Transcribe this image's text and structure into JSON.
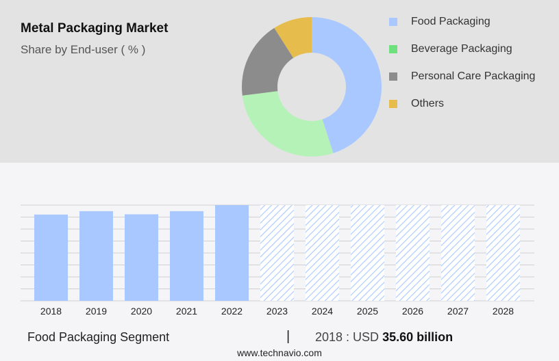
{
  "header": {
    "title": "Metal Packaging Market",
    "subtitle": "Share by End-user ( % )"
  },
  "chart_data": [
    {
      "type": "pie",
      "style": "donut",
      "categories": [
        "Food Packaging",
        "Beverage Packaging",
        "Personal Care Packaging",
        "Others"
      ],
      "values": [
        45,
        28,
        18,
        9
      ],
      "colors": [
        "#a8c8ff",
        "#b5f2b8",
        "#8c8c8c",
        "#e6bc4c"
      ],
      "legend_colors": [
        "#a8c8ff",
        "#6ee07e",
        "#8c8c8c",
        "#e6bc4c"
      ],
      "legend": "right"
    },
    {
      "type": "bar",
      "categories": [
        "2018",
        "2019",
        "2020",
        "2021",
        "2022",
        "2023",
        "2024",
        "2025",
        "2026",
        "2027",
        "2028"
      ],
      "values": [
        35.6,
        37.0,
        35.7,
        37.0,
        39.5,
        null,
        null,
        null,
        null,
        null,
        null
      ],
      "forecast_from": "2023",
      "bar_color": "#a8c8ff",
      "grid": true
    }
  ],
  "footer": {
    "segment": "Food Packaging Segment",
    "divider": "|",
    "year_label": "2018 : USD",
    "value_label": "35.60 billion",
    "source": "www.technavio.com"
  }
}
